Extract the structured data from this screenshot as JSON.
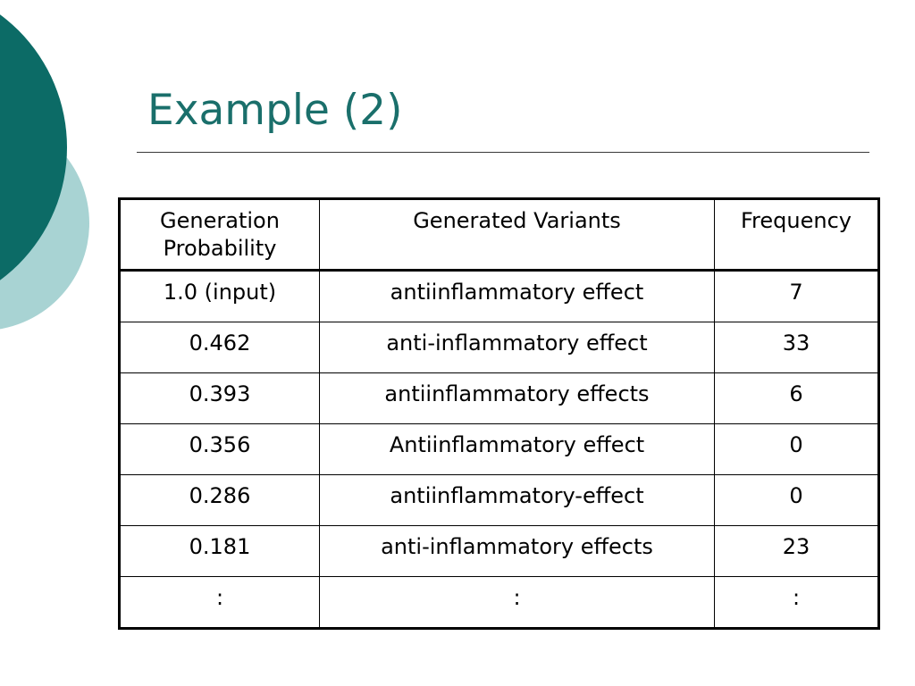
{
  "slide": {
    "title": "Example (2)"
  },
  "colors": {
    "dark_teal": "#0c6b66",
    "light_teal": "#a8d3d3",
    "title": "#1a6f6b"
  },
  "table": {
    "headers": [
      "Generation Probability",
      "Generated Variants",
      "Frequency"
    ],
    "rows": [
      [
        "1.0 (input)",
        "antiinflammatory effect",
        "7"
      ],
      [
        "0.462",
        "anti-inflammatory effect",
        "33"
      ],
      [
        "0.393",
        "antiinflammatory effects",
        "6"
      ],
      [
        "0.356",
        "Antiinflammatory effect",
        "0"
      ],
      [
        "0.286",
        "antiinflammatory-effect",
        "0"
      ],
      [
        "0.181",
        "anti-inflammatory effects",
        "23"
      ],
      [
        ":",
        ":",
        ":"
      ]
    ]
  }
}
